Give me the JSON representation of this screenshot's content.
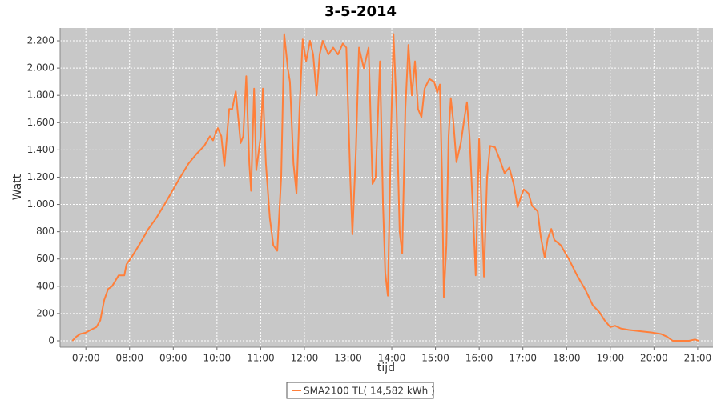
{
  "chart_data": {
    "type": "line",
    "title": "3-5-2014",
    "x_label": "tijd",
    "y_label": "Watt",
    "x": [
      6.69,
      6.78,
      6.87,
      7.0,
      7.11,
      7.24,
      7.33,
      7.42,
      7.51,
      7.6,
      7.75,
      7.88,
      7.93,
      8.06,
      8.25,
      8.43,
      8.61,
      8.8,
      8.98,
      9.16,
      9.35,
      9.53,
      9.71,
      9.84,
      9.91,
      10.02,
      10.1,
      10.17,
      10.28,
      10.35,
      10.43,
      10.54,
      10.6,
      10.67,
      10.74,
      10.78,
      10.85,
      10.9,
      11.0,
      11.05,
      11.12,
      11.21,
      11.29,
      11.38,
      11.47,
      11.54,
      11.62,
      11.67,
      11.75,
      11.82,
      11.89,
      11.96,
      12.04,
      12.13,
      12.2,
      12.28,
      12.35,
      12.42,
      12.55,
      12.66,
      12.77,
      12.88,
      12.96,
      13.05,
      13.1,
      13.18,
      13.25,
      13.36,
      13.47,
      13.56,
      13.63,
      13.73,
      13.8,
      13.85,
      13.91,
      13.98,
      14.04,
      14.11,
      14.18,
      14.24,
      14.31,
      14.38,
      14.46,
      14.53,
      14.6,
      14.68,
      14.75,
      14.86,
      14.97,
      15.04,
      15.1,
      15.15,
      15.19,
      15.25,
      15.3,
      15.35,
      15.41,
      15.48,
      15.58,
      15.67,
      15.72,
      15.78,
      15.85,
      15.92,
      16.0,
      16.05,
      16.11,
      16.18,
      16.25,
      16.36,
      16.47,
      16.58,
      16.69,
      16.79,
      16.88,
      16.95,
      17.02,
      17.13,
      17.21,
      17.34,
      17.41,
      17.5,
      17.57,
      17.65,
      17.72,
      17.87,
      18.05,
      18.24,
      18.42,
      18.6,
      18.75,
      18.87,
      19.0,
      19.11,
      19.24,
      19.42,
      19.7,
      19.97,
      20.16,
      20.3,
      20.43,
      20.8,
      20.94,
      21.02
    ],
    "series": [
      {
        "name": "SMA2100 TL( 14,582 kWh )",
        "color": "#ff7f3a",
        "values": [
          0,
          30,
          50,
          60,
          80,
          100,
          150,
          300,
          380,
          400,
          480,
          480,
          560,
          620,
          720,
          820,
          900,
          1000,
          1100,
          1200,
          1300,
          1370,
          1430,
          1500,
          1470,
          1560,
          1500,
          1280,
          1700,
          1700,
          1830,
          1450,
          1500,
          1940,
          1300,
          1100,
          1850,
          1250,
          1500,
          1850,
          1300,
          900,
          700,
          660,
          1200,
          2250,
          2000,
          1900,
          1300,
          1080,
          1700,
          2210,
          2050,
          2200,
          2100,
          1800,
          2100,
          2200,
          2100,
          2150,
          2100,
          2180,
          2150,
          1200,
          780,
          1400,
          2150,
          2000,
          2150,
          1150,
          1200,
          2050,
          1000,
          500,
          330,
          1500,
          2250,
          1700,
          800,
          640,
          1700,
          2170,
          1800,
          2050,
          1700,
          1640,
          1850,
          1920,
          1900,
          1820,
          1880,
          1200,
          320,
          700,
          1500,
          1780,
          1600,
          1310,
          1450,
          1650,
          1750,
          1500,
          1000,
          480,
          1480,
          1000,
          470,
          1200,
          1430,
          1420,
          1330,
          1230,
          1270,
          1150,
          980,
          1050,
          1110,
          1080,
          990,
          950,
          760,
          610,
          750,
          820,
          740,
          700,
          600,
          480,
          380,
          260,
          210,
          150,
          100,
          110,
          90,
          80,
          70,
          60,
          50,
          30,
          0,
          0,
          10,
          0
        ]
      }
    ],
    "xlim": [
      6.41,
      21.35
    ],
    "xticks": [
      {
        "value": 7,
        "label": "07:00"
      },
      {
        "value": 8,
        "label": "08:00"
      },
      {
        "value": 9,
        "label": "09:00"
      },
      {
        "value": 10,
        "label": "10:00"
      },
      {
        "value": 11,
        "label": "11:00"
      },
      {
        "value": 12,
        "label": "12:00"
      },
      {
        "value": 13,
        "label": "13:00"
      },
      {
        "value": 14,
        "label": "14:00"
      },
      {
        "value": 15,
        "label": "15:00"
      },
      {
        "value": 16,
        "label": "16:00"
      },
      {
        "value": 17,
        "label": "17:00"
      },
      {
        "value": 18,
        "label": "18:00"
      },
      {
        "value": 19,
        "label": "19:00"
      },
      {
        "value": 20,
        "label": "20:00"
      },
      {
        "value": 21,
        "label": "21:00"
      }
    ],
    "ylim": [
      -47,
      2294
    ],
    "yticks": [
      0,
      {
        "value": 200,
        "label": "200"
      },
      {
        "value": 400,
        "label": "400"
      },
      {
        "value": 600,
        "label": "600"
      },
      {
        "value": 800,
        "label": "800"
      },
      {
        "value": 1000,
        "label": "1.000"
      },
      {
        "value": 1200,
        "label": "1.200"
      },
      {
        "value": 1400,
        "label": "1.400"
      },
      {
        "value": 1600,
        "label": "1.600"
      },
      {
        "value": 1800,
        "label": "1.800"
      },
      {
        "value": 2000,
        "label": "2.000"
      },
      {
        "value": 2200,
        "label": "2.200"
      }
    ],
    "grid": true,
    "legend": "bottom",
    "plot_background": "#c8c8c8"
  }
}
